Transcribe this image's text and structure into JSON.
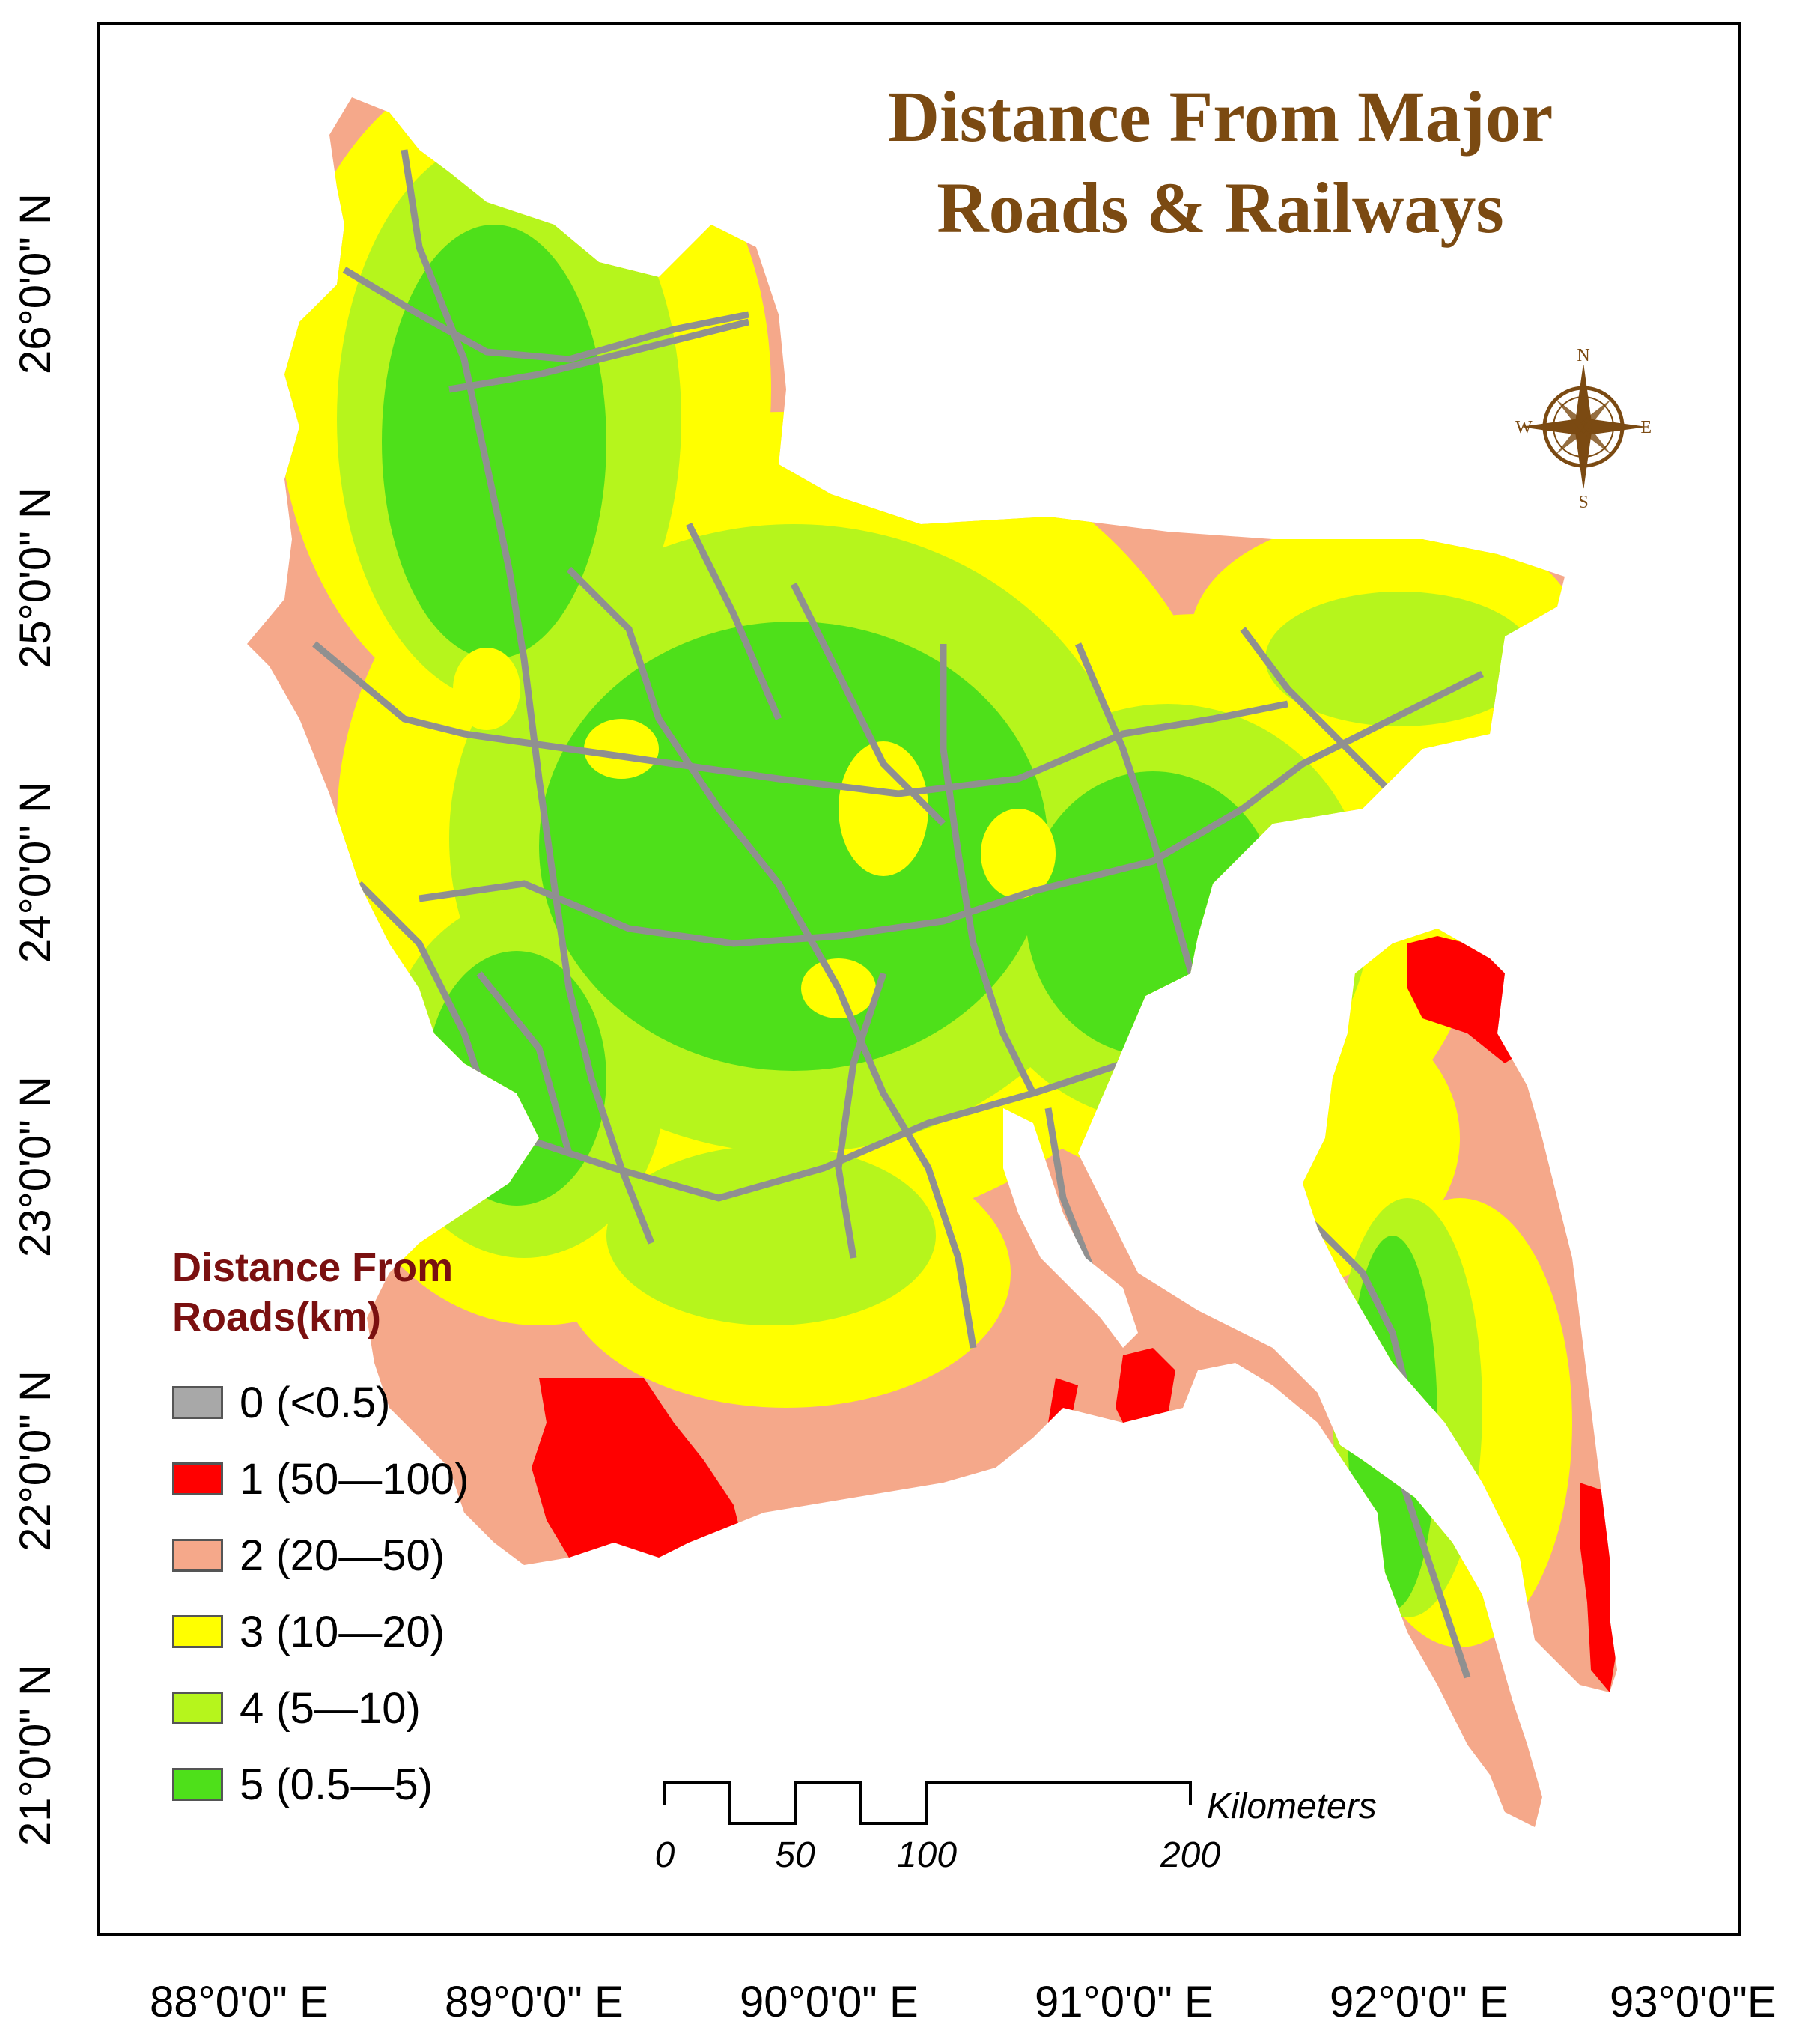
{
  "title": {
    "line1": "Distance From Major",
    "line2": "Roads & Railways"
  },
  "latitude_labels": [
    "26°0'0\" N",
    "25°0'0\" N",
    "24°0'0\" N",
    "23°0'0\" N",
    "22°0'0\" N",
    "21°0'0\" N"
  ],
  "longitude_labels": [
    "88°0'0\" E",
    "89°0'0\" E",
    "90°0'0\" E",
    "91°0'0\" E",
    "92°0'0\" E",
    "93°0'0\"E"
  ],
  "legend": {
    "title_line1": "Distance From",
    "title_line2": "Roads(km)",
    "items": [
      {
        "label": "0 (<0.5)",
        "color": "#a8a8a8"
      },
      {
        "label": "1 (50—100)",
        "color": "#ff0000"
      },
      {
        "label": "2 (20—50)",
        "color": "#f5a88a"
      },
      {
        "label": "3 (10—20)",
        "color": "#ffff00"
      },
      {
        "label": "4 (5—10)",
        "color": "#b6f51c"
      },
      {
        "label": "5 (0.5—5)",
        "color": "#4ee01a"
      }
    ]
  },
  "scale_bar": {
    "unit": "Kilometers",
    "ticks": [
      "0",
      "50",
      "100",
      "200"
    ]
  },
  "north_arrow": {
    "n": "N",
    "s": "S",
    "e": "E",
    "w": "W"
  },
  "colors": {
    "title": "#7b4a12",
    "legend_title": "#7a1010",
    "roads": "#909090"
  }
}
